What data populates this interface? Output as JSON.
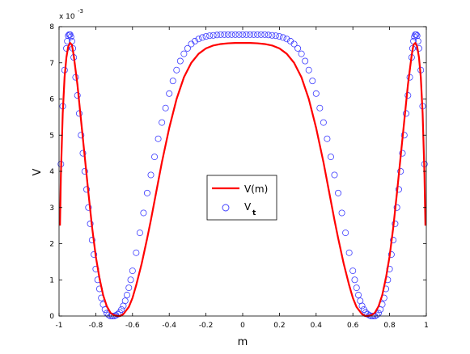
{
  "chart_data": {
    "type": "line",
    "xlabel": "m",
    "ylabel": "V",
    "y_multiplier_label": "x 10",
    "y_multiplier_exponent": "-3",
    "xlim": [
      -1,
      1
    ],
    "ylim": [
      0,
      8
    ],
    "x_ticks": [
      -1,
      -0.8,
      -0.6,
      -0.4,
      -0.2,
      0,
      0.2,
      0.4,
      0.6,
      0.8,
      1
    ],
    "x_tick_labels": [
      "-1",
      "-0.8",
      "-0.6",
      "-0.4",
      "-0.2",
      "0",
      "0.2",
      "0.4",
      "0.6",
      "0.8",
      "1"
    ],
    "y_ticks": [
      0,
      1,
      2,
      3,
      4,
      5,
      6,
      7,
      8
    ],
    "y_tick_labels": [
      "0",
      "1",
      "2",
      "3",
      "4",
      "5",
      "6",
      "7",
      "8"
    ],
    "grid": false,
    "legend_position": "center",
    "series": [
      {
        "name": "V(m)",
        "style": "line",
        "color": "#ff0000",
        "x": [
          -0.995,
          -0.99,
          -0.98,
          -0.97,
          -0.96,
          -0.95,
          -0.94,
          -0.93,
          -0.92,
          -0.91,
          -0.9,
          -0.88,
          -0.86,
          -0.84,
          -0.82,
          -0.8,
          -0.78,
          -0.76,
          -0.74,
          -0.72,
          -0.7,
          -0.68,
          -0.667,
          -0.65,
          -0.62,
          -0.6,
          -0.58,
          -0.55,
          -0.52,
          -0.5,
          -0.47,
          -0.44,
          -0.4,
          -0.36,
          -0.32,
          -0.28,
          -0.24,
          -0.2,
          -0.16,
          -0.12,
          -0.08,
          -0.04,
          0,
          0.04,
          0.08,
          0.12,
          0.16,
          0.2,
          0.24,
          0.28,
          0.32,
          0.36,
          0.4,
          0.44,
          0.47,
          0.5,
          0.52,
          0.55,
          0.58,
          0.6,
          0.62,
          0.65,
          0.667,
          0.68,
          0.7,
          0.72,
          0.74,
          0.76,
          0.78,
          0.8,
          0.82,
          0.84,
          0.86,
          0.88,
          0.9,
          0.91,
          0.92,
          0.93,
          0.94,
          0.95,
          0.96,
          0.97,
          0.98,
          0.99,
          0.995
        ],
        "y": [
          2.5,
          3.9,
          5.6,
          6.6,
          7.15,
          7.45,
          7.55,
          7.5,
          7.2,
          6.8,
          6.4,
          5.4,
          4.4,
          3.4,
          2.45,
          1.65,
          1.05,
          0.58,
          0.27,
          0.09,
          0.02,
          0.0,
          0.0,
          0.05,
          0.25,
          0.5,
          0.85,
          1.45,
          2.15,
          2.65,
          3.45,
          4.25,
          5.2,
          6.0,
          6.6,
          7.0,
          7.25,
          7.4,
          7.48,
          7.52,
          7.54,
          7.55,
          7.55,
          7.55,
          7.54,
          7.52,
          7.48,
          7.4,
          7.25,
          7.0,
          6.6,
          6.0,
          5.2,
          4.25,
          3.45,
          2.65,
          2.15,
          1.45,
          0.85,
          0.5,
          0.25,
          0.05,
          0.0,
          0.0,
          0.02,
          0.09,
          0.27,
          0.58,
          1.05,
          1.65,
          2.45,
          3.4,
          4.4,
          5.4,
          6.4,
          6.8,
          7.2,
          7.5,
          7.55,
          7.45,
          7.15,
          6.6,
          5.6,
          3.9,
          2.5
        ]
      },
      {
        "name": "V",
        "name_subscript": "t",
        "style": "markers",
        "color": "#3a3aff",
        "x": [
          -0.99,
          -0.98,
          -0.97,
          -0.96,
          -0.955,
          -0.95,
          -0.945,
          -0.94,
          -0.935,
          -0.93,
          -0.925,
          -0.92,
          -0.91,
          -0.9,
          -0.89,
          -0.88,
          -0.87,
          -0.86,
          -0.85,
          -0.84,
          -0.83,
          -0.82,
          -0.81,
          -0.8,
          -0.79,
          -0.78,
          -0.77,
          -0.76,
          -0.75,
          -0.74,
          -0.73,
          -0.72,
          -0.71,
          -0.7,
          -0.69,
          -0.68,
          -0.67,
          -0.66,
          -0.65,
          -0.64,
          -0.63,
          -0.62,
          -0.61,
          -0.6,
          -0.58,
          -0.56,
          -0.54,
          -0.52,
          -0.5,
          -0.48,
          -0.46,
          -0.44,
          -0.42,
          -0.4,
          -0.38,
          -0.36,
          -0.34,
          -0.32,
          -0.3,
          -0.28,
          -0.26,
          -0.24,
          -0.22,
          -0.2,
          -0.18,
          -0.16,
          -0.14,
          -0.12,
          -0.1,
          -0.08,
          -0.06,
          -0.04,
          -0.02,
          0,
          0.02,
          0.04,
          0.06,
          0.08,
          0.1,
          0.12,
          0.14,
          0.16,
          0.18,
          0.2,
          0.22,
          0.24,
          0.26,
          0.28,
          0.3,
          0.32,
          0.34,
          0.36,
          0.38,
          0.4,
          0.42,
          0.44,
          0.46,
          0.48,
          0.5,
          0.52,
          0.54,
          0.56,
          0.58,
          0.6,
          0.61,
          0.62,
          0.63,
          0.64,
          0.65,
          0.66,
          0.67,
          0.68,
          0.69,
          0.7,
          0.71,
          0.72,
          0.73,
          0.74,
          0.75,
          0.76,
          0.77,
          0.78,
          0.79,
          0.8,
          0.81,
          0.82,
          0.83,
          0.84,
          0.85,
          0.86,
          0.87,
          0.88,
          0.89,
          0.9,
          0.91,
          0.92,
          0.925,
          0.93,
          0.935,
          0.94,
          0.945,
          0.95,
          0.955,
          0.96,
          0.97,
          0.98,
          0.99
        ],
        "y": [
          4.2,
          5.8,
          6.8,
          7.4,
          7.6,
          7.75,
          7.78,
          7.78,
          7.72,
          7.6,
          7.4,
          7.15,
          6.6,
          6.1,
          5.6,
          5.0,
          4.5,
          4.0,
          3.5,
          3.0,
          2.55,
          2.1,
          1.7,
          1.3,
          1.0,
          0.75,
          0.5,
          0.32,
          0.18,
          0.08,
          0.03,
          0.0,
          0.0,
          0.0,
          0.02,
          0.05,
          0.1,
          0.18,
          0.28,
          0.42,
          0.58,
          0.78,
          1.0,
          1.25,
          1.75,
          2.3,
          2.85,
          3.4,
          3.9,
          4.4,
          4.9,
          5.35,
          5.75,
          6.15,
          6.5,
          6.8,
          7.05,
          7.25,
          7.4,
          7.52,
          7.6,
          7.66,
          7.7,
          7.73,
          7.75,
          7.76,
          7.77,
          7.78,
          7.78,
          7.78,
          7.78,
          7.78,
          7.78,
          7.78,
          7.78,
          7.78,
          7.78,
          7.78,
          7.78,
          7.78,
          7.77,
          7.76,
          7.75,
          7.73,
          7.7,
          7.66,
          7.6,
          7.52,
          7.4,
          7.25,
          7.05,
          6.8,
          6.5,
          6.15,
          5.75,
          5.35,
          4.9,
          4.4,
          3.9,
          3.4,
          2.85,
          2.3,
          1.75,
          1.25,
          1.0,
          0.78,
          0.58,
          0.42,
          0.28,
          0.18,
          0.1,
          0.05,
          0.02,
          0.0,
          0.0,
          0.0,
          0.03,
          0.08,
          0.18,
          0.32,
          0.5,
          0.75,
          1.0,
          1.3,
          1.7,
          2.1,
          2.55,
          3.0,
          3.5,
          4.0,
          4.5,
          5.0,
          5.6,
          6.1,
          6.6,
          7.15,
          7.4,
          7.6,
          7.72,
          7.78,
          7.78,
          7.75,
          7.6,
          7.4,
          6.8,
          5.8,
          4.2
        ]
      }
    ]
  }
}
